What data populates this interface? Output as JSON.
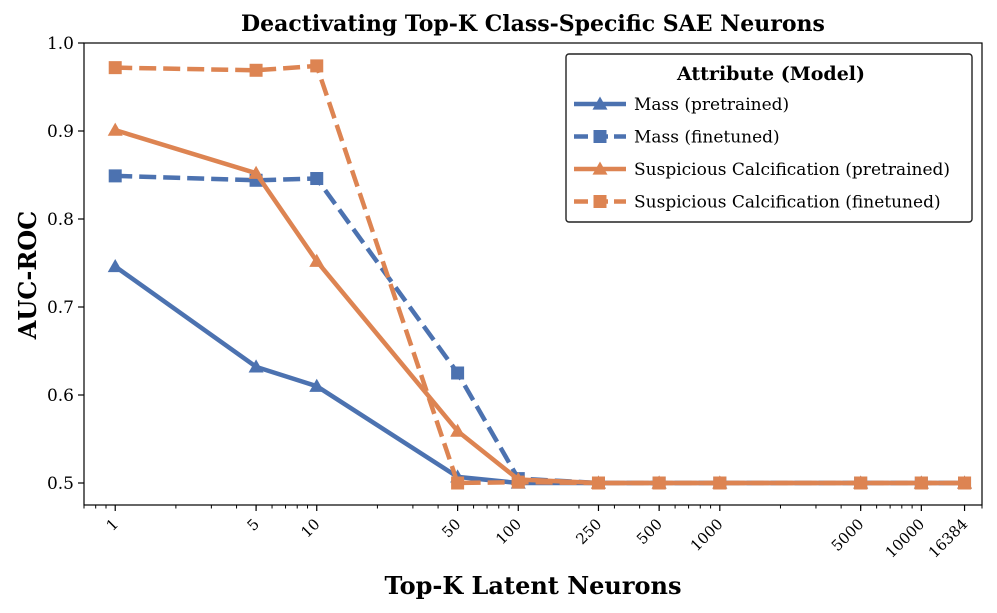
{
  "chart_data": {
    "type": "line",
    "title": "Deactivating Top-K Class-Specific SAE Neurons",
    "xlabel": "Top-K Latent Neurons",
    "ylabel": "AUC-ROC",
    "xscale": "log",
    "xlim": [
      0.7,
      20000
    ],
    "ylim": [
      0.475,
      1.0
    ],
    "grid": false,
    "x_ticks": [
      1,
      5,
      10,
      50,
      100,
      250,
      500,
      1000,
      5000,
      10000,
      16384
    ],
    "x_tick_labels": [
      "1",
      "5",
      "10",
      "50",
      "100",
      "250",
      "500",
      "1000",
      "5000",
      "10000",
      "16384"
    ],
    "y_ticks": [
      0.5,
      0.6,
      0.7,
      0.8,
      0.9,
      1.0
    ],
    "y_tick_labels": [
      "0.5",
      "0.6",
      "0.7",
      "0.8",
      "0.9",
      "1.0"
    ],
    "legend": {
      "title": "Attribute (Model)",
      "position": "top-right"
    },
    "series": [
      {
        "name": "Mass (pretrained)",
        "color": "#4c72b0",
        "linestyle": "solid",
        "marker": "triangle",
        "x": [
          1,
          5,
          10,
          50,
          100,
          250,
          500,
          1000,
          5000,
          10000,
          16384
        ],
        "y": [
          0.746,
          0.632,
          0.61,
          0.507,
          0.5,
          0.5,
          0.5,
          0.5,
          0.5,
          0.5,
          0.5
        ]
      },
      {
        "name": "Mass (finetuned)",
        "color": "#4c72b0",
        "linestyle": "dashed",
        "marker": "square",
        "x": [
          1,
          5,
          10,
          50,
          100,
          250,
          500,
          1000,
          5000,
          10000,
          16384
        ],
        "y": [
          0.849,
          0.844,
          0.846,
          0.625,
          0.505,
          0.5,
          0.5,
          0.5,
          0.5,
          0.5,
          0.5
        ]
      },
      {
        "name": "Suspicious Calcification (pretrained)",
        "color": "#dd8452",
        "linestyle": "solid",
        "marker": "triangle",
        "x": [
          1,
          5,
          10,
          50,
          100,
          250,
          500,
          1000,
          5000,
          10000,
          16384
        ],
        "y": [
          0.901,
          0.852,
          0.752,
          0.559,
          0.504,
          0.5,
          0.5,
          0.5,
          0.5,
          0.5,
          0.5
        ]
      },
      {
        "name": "Suspicious Calcification (finetuned)",
        "color": "#dd8452",
        "linestyle": "dashed",
        "marker": "square",
        "x": [
          1,
          5,
          10,
          50,
          100,
          250,
          500,
          1000,
          5000,
          10000,
          16384
        ],
        "y": [
          0.972,
          0.969,
          0.974,
          0.5,
          0.501,
          0.5,
          0.5,
          0.5,
          0.5,
          0.5,
          0.5
        ]
      }
    ]
  }
}
